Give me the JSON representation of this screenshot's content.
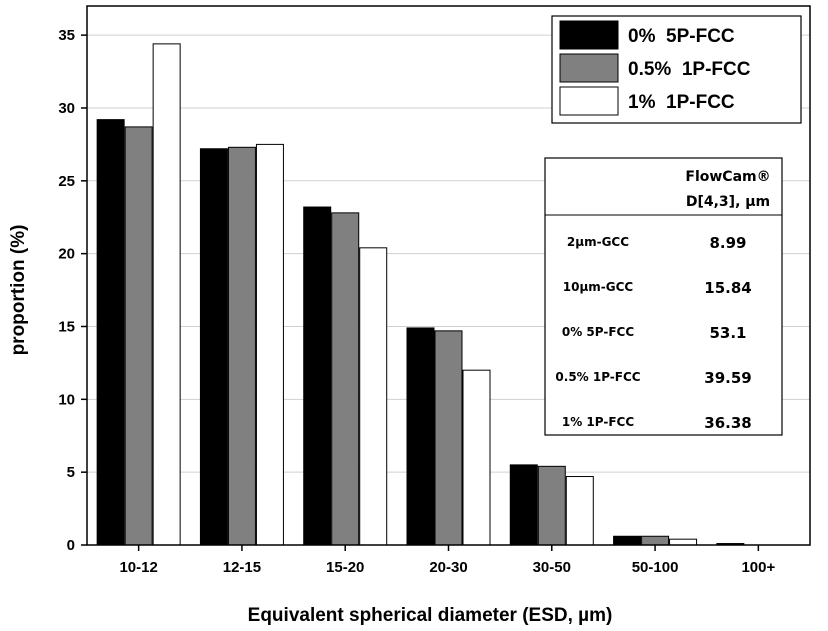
{
  "chart_data": {
    "type": "bar",
    "title": "",
    "xlabel": "Equivalent spherical diameter (ESD, µm)",
    "ylabel": "proportion (%)",
    "ylim": [
      0,
      37
    ],
    "yticks": [
      0,
      5,
      10,
      15,
      20,
      25,
      30,
      35
    ],
    "grid": true,
    "legend_position": "top-right",
    "categories": [
      "10-12",
      "12-15",
      "15-20",
      "20-30",
      "30-50",
      "50-100",
      "100+"
    ],
    "series": [
      {
        "name": "0%  5P-FCC",
        "color": "#000000",
        "values": [
          29.2,
          27.2,
          23.2,
          14.9,
          5.5,
          0.6,
          0.1
        ]
      },
      {
        "name": "0.5%  1P-FCC",
        "color": "#808080",
        "values": [
          28.7,
          27.3,
          22.8,
          14.7,
          5.4,
          0.6,
          0.0
        ]
      },
      {
        "name": "1%  1P-FCC",
        "color": "#ffffff",
        "values": [
          34.4,
          27.5,
          20.4,
          12.0,
          4.7,
          0.4,
          0.0
        ]
      }
    ],
    "inset_table": {
      "header_line1": "FlowCam®",
      "header_line2": "D[4,3], µm",
      "rows": [
        {
          "label": "2µm-GCC",
          "value": "8.99"
        },
        {
          "label": "10µm-GCC",
          "value": "15.84"
        },
        {
          "label": "0% 5P-FCC",
          "value": "53.1"
        },
        {
          "label": "0.5% 1P-FCC",
          "value": "39.59"
        },
        {
          "label": "1% 1P-FCC",
          "value": "36.38"
        }
      ]
    }
  }
}
